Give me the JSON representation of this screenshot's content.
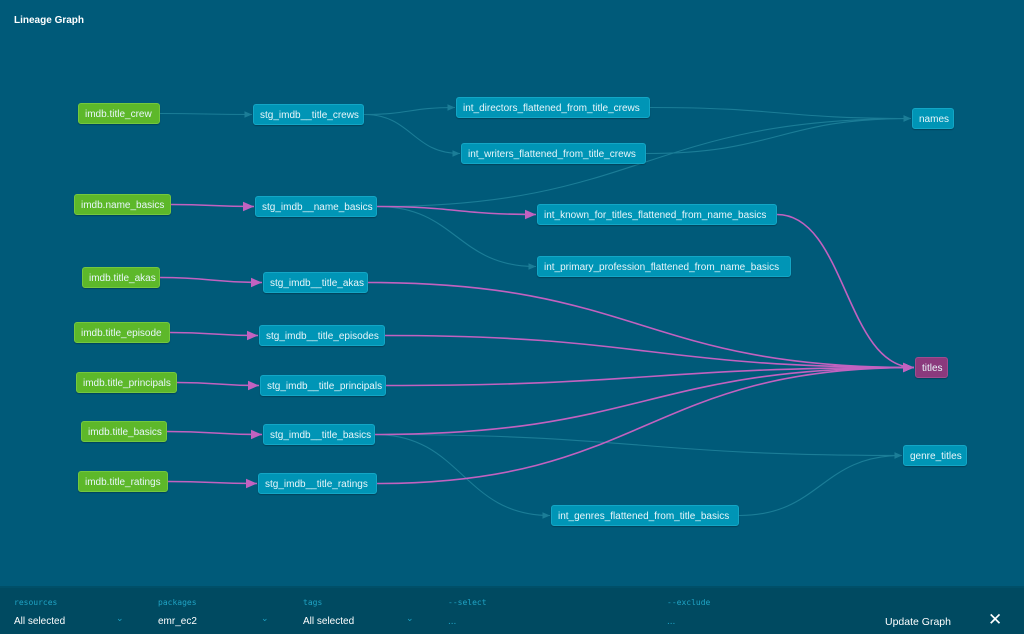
{
  "title": "Lineage Graph",
  "colors": {
    "background": "#005a79",
    "source": "#5db82a",
    "model": "#0095b6",
    "selected": "#8b3a7d",
    "edge_highlight": "#c262c0",
    "edge_default": "#1b7d97"
  },
  "nodes": {
    "title_crew": {
      "label": "imdb.title_crew",
      "type": "source"
    },
    "name_basics": {
      "label": "imdb.name_basics",
      "type": "source"
    },
    "title_akas": {
      "label": "imdb.title_akas",
      "type": "source"
    },
    "title_episode": {
      "label": "imdb.title_episode",
      "type": "source"
    },
    "title_principals": {
      "label": "imdb.title_principals",
      "type": "source"
    },
    "title_basics": {
      "label": "imdb.title_basics",
      "type": "source"
    },
    "title_ratings": {
      "label": "imdb.title_ratings",
      "type": "source"
    },
    "stg_crews": {
      "label": "stg_imdb__title_crews",
      "type": "model"
    },
    "stg_name": {
      "label": "stg_imdb__name_basics",
      "type": "model"
    },
    "stg_akas": {
      "label": "stg_imdb__title_akas",
      "type": "model"
    },
    "stg_episodes": {
      "label": "stg_imdb__title_episodes",
      "type": "model"
    },
    "stg_principals": {
      "label": "stg_imdb__title_principals",
      "type": "model"
    },
    "stg_basics": {
      "label": "stg_imdb__title_basics",
      "type": "model"
    },
    "stg_ratings": {
      "label": "stg_imdb__title_ratings",
      "type": "model"
    },
    "int_directors": {
      "label": "int_directors_flattened_from_title_crews",
      "type": "model"
    },
    "int_writers": {
      "label": "int_writers_flattened_from_title_crews",
      "type": "model"
    },
    "int_known": {
      "label": "int_known_for_titles_flattened_from_name_basics",
      "type": "model"
    },
    "int_primary": {
      "label": "int_primary_profession_flattened_from_name_basics",
      "type": "model"
    },
    "int_genres": {
      "label": "int_genres_flattened_from_title_basics",
      "type": "model"
    },
    "names": {
      "label": "names",
      "type": "model"
    },
    "titles": {
      "label": "titles",
      "type": "selected"
    },
    "genre_titles": {
      "label": "genre_titles",
      "type": "model"
    }
  },
  "edges": [
    [
      "title_crew",
      "stg_crews",
      false
    ],
    [
      "stg_crews",
      "int_directors",
      false
    ],
    [
      "stg_crews",
      "int_writers",
      false
    ],
    [
      "int_directors",
      "names",
      false
    ],
    [
      "int_writers",
      "names",
      false
    ],
    [
      "stg_name",
      "names",
      false
    ],
    [
      "name_basics",
      "stg_name",
      true
    ],
    [
      "stg_name",
      "int_known",
      true
    ],
    [
      "stg_name",
      "int_primary",
      false
    ],
    [
      "int_known",
      "titles",
      true
    ],
    [
      "title_akas",
      "stg_akas",
      true
    ],
    [
      "stg_akas",
      "titles",
      true
    ],
    [
      "title_episode",
      "stg_episodes",
      true
    ],
    [
      "stg_episodes",
      "titles",
      true
    ],
    [
      "title_principals",
      "stg_principals",
      true
    ],
    [
      "stg_principals",
      "titles",
      true
    ],
    [
      "title_basics",
      "stg_basics",
      true
    ],
    [
      "stg_basics",
      "titles",
      true
    ],
    [
      "stg_basics",
      "genre_titles",
      false
    ],
    [
      "stg_basics",
      "int_genres",
      false
    ],
    [
      "int_genres",
      "genre_titles",
      false
    ],
    [
      "title_ratings",
      "stg_ratings",
      true
    ],
    [
      "stg_ratings",
      "titles",
      true
    ]
  ],
  "footer": {
    "resources": {
      "label": "resources",
      "value": "All selected"
    },
    "packages": {
      "label": "packages",
      "value": "emr_ec2"
    },
    "tags": {
      "label": "tags",
      "value": "All selected"
    },
    "select": {
      "label": "--select",
      "value": "..."
    },
    "exclude": {
      "label": "--exclude",
      "value": "..."
    },
    "update_label": "Update Graph"
  }
}
